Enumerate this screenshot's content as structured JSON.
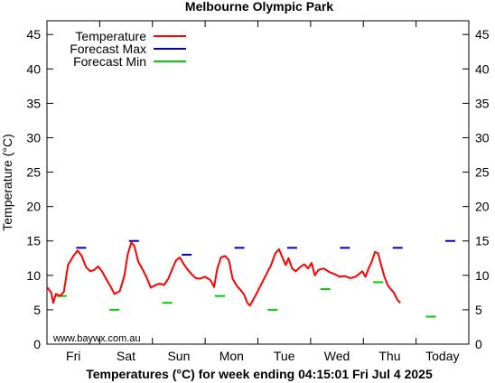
{
  "chart_data": {
    "type": "line",
    "title": "Melbourne Olympic Park",
    "xlabel": "Temperatures (°C) for week ending 04:15:01 Fri Jul 4 2025",
    "ylabel": "Temperature (°C)",
    "watermark": "www.baywx.com.au",
    "ylim": [
      0,
      47
    ],
    "yticks": [
      0,
      5,
      10,
      15,
      20,
      25,
      30,
      35,
      40,
      45
    ],
    "xlim_days": [
      0,
      8
    ],
    "x_categories": [
      "Fri",
      "Sat",
      "Sun",
      "Mon",
      "Tue",
      "Wed",
      "Thu",
      "Today"
    ],
    "grid": false,
    "legend_position": "top-left",
    "legend": [
      {
        "label": "Temperature",
        "color": "#ff0000"
      },
      {
        "label": "Forecast Max",
        "color": "#0000cc"
      },
      {
        "label": "Forecast Min",
        "color": "#00cc00"
      }
    ],
    "series": [
      {
        "name": "Temperature",
        "color": "#ff0000",
        "points": [
          [
            0.0,
            8.3
          ],
          [
            0.08,
            7.5
          ],
          [
            0.12,
            6.0
          ],
          [
            0.17,
            7.3
          ],
          [
            0.25,
            7.0
          ],
          [
            0.32,
            7.6
          ],
          [
            0.4,
            11.5
          ],
          [
            0.5,
            12.8
          ],
          [
            0.58,
            13.6
          ],
          [
            0.66,
            12.8
          ],
          [
            0.74,
            11.2
          ],
          [
            0.82,
            10.6
          ],
          [
            0.9,
            10.8
          ],
          [
            0.97,
            11.3
          ],
          [
            1.05,
            10.5
          ],
          [
            1.12,
            9.5
          ],
          [
            1.2,
            8.5
          ],
          [
            1.28,
            7.3
          ],
          [
            1.38,
            7.7
          ],
          [
            1.47,
            10.0
          ],
          [
            1.53,
            13.0
          ],
          [
            1.6,
            14.8
          ],
          [
            1.66,
            14.2
          ],
          [
            1.73,
            12.0
          ],
          [
            1.82,
            10.8
          ],
          [
            1.9,
            9.5
          ],
          [
            1.97,
            8.2
          ],
          [
            2.06,
            8.6
          ],
          [
            2.14,
            8.8
          ],
          [
            2.22,
            8.6
          ],
          [
            2.3,
            9.5
          ],
          [
            2.38,
            11.0
          ],
          [
            2.45,
            12.2
          ],
          [
            2.52,
            12.6
          ],
          [
            2.58,
            11.8
          ],
          [
            2.65,
            11.0
          ],
          [
            2.74,
            10.2
          ],
          [
            2.82,
            9.6
          ],
          [
            2.9,
            9.5
          ],
          [
            3.0,
            9.8
          ],
          [
            3.1,
            9.3
          ],
          [
            3.17,
            8.3
          ],
          [
            3.23,
            11.0
          ],
          [
            3.3,
            12.6
          ],
          [
            3.38,
            12.8
          ],
          [
            3.45,
            12.2
          ],
          [
            3.52,
            9.5
          ],
          [
            3.6,
            8.5
          ],
          [
            3.68,
            7.8
          ],
          [
            3.74,
            7.2
          ],
          [
            3.8,
            6.0
          ],
          [
            3.85,
            5.6
          ],
          [
            3.95,
            7.0
          ],
          [
            4.05,
            8.5
          ],
          [
            4.15,
            10.0
          ],
          [
            4.25,
            11.5
          ],
          [
            4.33,
            13.2
          ],
          [
            4.4,
            13.8
          ],
          [
            4.47,
            12.5
          ],
          [
            4.53,
            11.5
          ],
          [
            4.58,
            12.5
          ],
          [
            4.65,
            11.0
          ],
          [
            4.72,
            10.6
          ],
          [
            4.8,
            11.2
          ],
          [
            4.88,
            11.6
          ],
          [
            4.95,
            11.0
          ],
          [
            5.02,
            11.8
          ],
          [
            5.08,
            10.0
          ],
          [
            5.15,
            10.8
          ],
          [
            5.25,
            11.0
          ],
          [
            5.35,
            10.5
          ],
          [
            5.45,
            10.2
          ],
          [
            5.55,
            9.8
          ],
          [
            5.65,
            9.9
          ],
          [
            5.75,
            9.6
          ],
          [
            5.85,
            9.8
          ],
          [
            5.92,
            10.2
          ],
          [
            5.98,
            10.6
          ],
          [
            6.04,
            9.8
          ],
          [
            6.1,
            11.0
          ],
          [
            6.16,
            12.0
          ],
          [
            6.22,
            13.4
          ],
          [
            6.28,
            13.2
          ],
          [
            6.34,
            11.4
          ],
          [
            6.4,
            9.8
          ],
          [
            6.46,
            8.6
          ],
          [
            6.52,
            8.0
          ],
          [
            6.58,
            7.5
          ],
          [
            6.64,
            6.5
          ],
          [
            6.7,
            6.0
          ]
        ]
      }
    ],
    "forecast_max": [
      {
        "day": 0.65,
        "value": 14
      },
      {
        "day": 1.65,
        "value": 15
      },
      {
        "day": 2.65,
        "value": 13
      },
      {
        "day": 3.65,
        "value": 14
      },
      {
        "day": 4.65,
        "value": 14
      },
      {
        "day": 5.65,
        "value": 14
      },
      {
        "day": 6.65,
        "value": 14
      },
      {
        "day": 7.65,
        "value": 15
      }
    ],
    "forecast_min": [
      {
        "day": 0.28,
        "value": 7
      },
      {
        "day": 1.28,
        "value": 5
      },
      {
        "day": 2.28,
        "value": 6
      },
      {
        "day": 3.28,
        "value": 7
      },
      {
        "day": 4.28,
        "value": 5
      },
      {
        "day": 5.28,
        "value": 8
      },
      {
        "day": 6.28,
        "value": 9
      },
      {
        "day": 7.28,
        "value": 4
      }
    ]
  }
}
